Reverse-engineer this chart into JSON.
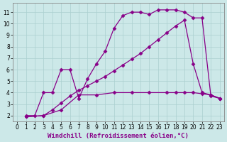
{
  "bg_color": "#cce8e8",
  "grid_color": "#aacfcf",
  "line_color": "#880088",
  "marker": "D",
  "markersize": 2.5,
  "linewidth": 0.9,
  "xlabel": "Windchill (Refroidissement éolien,°C)",
  "xlabel_fontsize": 6.5,
  "xlim": [
    -0.5,
    23.5
  ],
  "ylim": [
    1.5,
    11.8
  ],
  "xticks": [
    0,
    1,
    2,
    3,
    4,
    5,
    6,
    7,
    8,
    9,
    10,
    11,
    12,
    13,
    14,
    15,
    16,
    17,
    18,
    19,
    20,
    21,
    22,
    23
  ],
  "yticks": [
    2,
    3,
    4,
    5,
    6,
    7,
    8,
    9,
    10,
    11
  ],
  "tick_fontsize": 5.5,
  "series1_x": [
    1,
    2,
    3,
    4,
    5,
    6,
    7,
    8,
    9,
    10,
    11,
    12,
    13,
    14,
    15,
    16,
    17,
    18,
    19,
    20,
    21,
    22,
    23
  ],
  "series1_y": [
    2,
    2,
    4,
    4,
    6,
    6,
    3.5,
    5.2,
    6.5,
    7.6,
    9.6,
    10.7,
    11.0,
    11.0,
    10.8,
    11.2,
    11.2,
    11.2,
    11.0,
    10.5,
    10.5,
    3.7,
    3.5
  ],
  "series2_x": [
    1,
    3,
    4,
    5,
    6,
    7,
    8,
    9,
    10,
    11,
    12,
    13,
    14,
    15,
    16,
    17,
    18,
    19,
    20,
    21,
    22,
    23
  ],
  "series2_y": [
    1.9,
    2.0,
    2.5,
    3.1,
    3.7,
    4.2,
    4.6,
    5.0,
    5.4,
    5.9,
    6.4,
    6.9,
    7.4,
    8.0,
    8.6,
    9.2,
    9.8,
    10.3,
    6.5,
    4.0,
    3.8,
    3.5
  ],
  "series3_x": [
    1,
    3,
    5,
    7,
    9,
    11,
    13,
    15,
    17,
    18,
    19,
    20,
    21,
    22,
    23
  ],
  "series3_y": [
    1.9,
    2.0,
    2.5,
    3.8,
    3.8,
    4.0,
    4.0,
    4.0,
    4.0,
    4.0,
    4.0,
    4.0,
    3.9,
    3.8,
    3.5
  ]
}
